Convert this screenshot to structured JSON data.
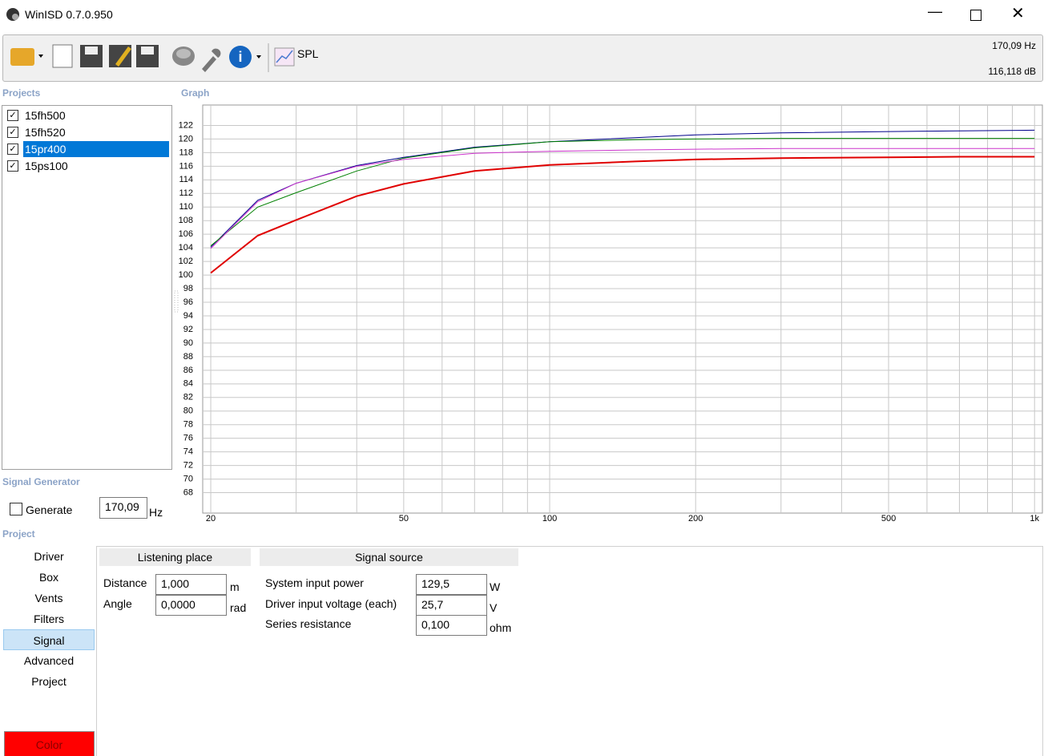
{
  "window": {
    "title": "WinISD 0.7.0.950"
  },
  "toolbar": {
    "spl_button": "SPL",
    "readout_frequency": "170,09 Hz",
    "readout_level": "116,118 dB"
  },
  "projects": {
    "heading": "Projects",
    "items": [
      "15fh500",
      "15fh520",
      "15pr400",
      "15ps100"
    ],
    "selected": 2
  },
  "signal_generator": {
    "heading": "Signal Generator",
    "generate_label": "Generate",
    "frequency": "170,09",
    "unit": "Hz"
  },
  "project": {
    "heading": "Project",
    "tabs": [
      "Driver",
      "Box",
      "Vents",
      "Filters",
      "Signal",
      "Advanced",
      "Project"
    ],
    "active_tab": 4,
    "color_button": "Color"
  },
  "listening_place": {
    "title": "Listening place",
    "rows": [
      {
        "label": "Distance",
        "value": "1,000",
        "unit": "m"
      },
      {
        "label": "Angle",
        "value": "0,0000",
        "unit": "rad"
      }
    ]
  },
  "signal_source": {
    "title": "Signal source",
    "rows": [
      {
        "label": "System input power",
        "value": "129,5",
        "unit": "W"
      },
      {
        "label": "Driver input voltage (each)",
        "value": "25,7",
        "unit": "V"
      },
      {
        "label": "Series resistance",
        "value": "0,100",
        "unit": "ohm"
      }
    ]
  },
  "chart_data": {
    "type": "line",
    "title": "Graph",
    "xscale": "log",
    "grid": true,
    "x": [
      20,
      25,
      30,
      40,
      50,
      70,
      100,
      150,
      200,
      300,
      500,
      700,
      1000
    ],
    "series": [
      {
        "color": "#00008b",
        "values": [
          104.1,
          111.0,
          113.5,
          116.1,
          117.3,
          118.8,
          119.6,
          120.2,
          120.6,
          120.9,
          121.1,
          121.2,
          121.3
        ]
      },
      {
        "color": "#008000",
        "values": [
          104.3,
          110.0,
          112.1,
          115.3,
          117.2,
          118.7,
          119.6,
          119.9,
          120.0,
          120.1,
          120.1,
          120.1,
          120.1
        ]
      },
      {
        "color": "#cc33cc",
        "values": [
          103.9,
          110.8,
          113.5,
          116.0,
          117.0,
          117.9,
          118.2,
          118.4,
          118.5,
          118.6,
          118.6,
          118.6,
          118.6
        ]
      },
      {
        "color": "#e00000",
        "width": 2,
        "values": [
          100.3,
          105.8,
          108.1,
          111.6,
          113.4,
          115.3,
          116.2,
          116.7,
          117.0,
          117.2,
          117.3,
          117.4,
          117.4
        ]
      }
    ],
    "xlim": [
      19.25,
      1038
    ],
    "ylim": [
      65,
      125
    ],
    "xticks": [
      20,
      50,
      100,
      200,
      500,
      {
        "value": 1000,
        "label": "1k"
      }
    ],
    "xgrid": [
      20,
      30,
      40,
      50,
      60,
      70,
      80,
      90,
      100,
      200,
      300,
      400,
      500,
      600,
      700,
      800,
      900,
      1000
    ],
    "yticks": [
      68,
      70,
      72,
      74,
      76,
      78,
      80,
      82,
      84,
      86,
      88,
      90,
      92,
      94,
      96,
      98,
      100,
      102,
      104,
      106,
      108,
      110,
      112,
      114,
      116,
      118,
      120,
      122
    ]
  }
}
